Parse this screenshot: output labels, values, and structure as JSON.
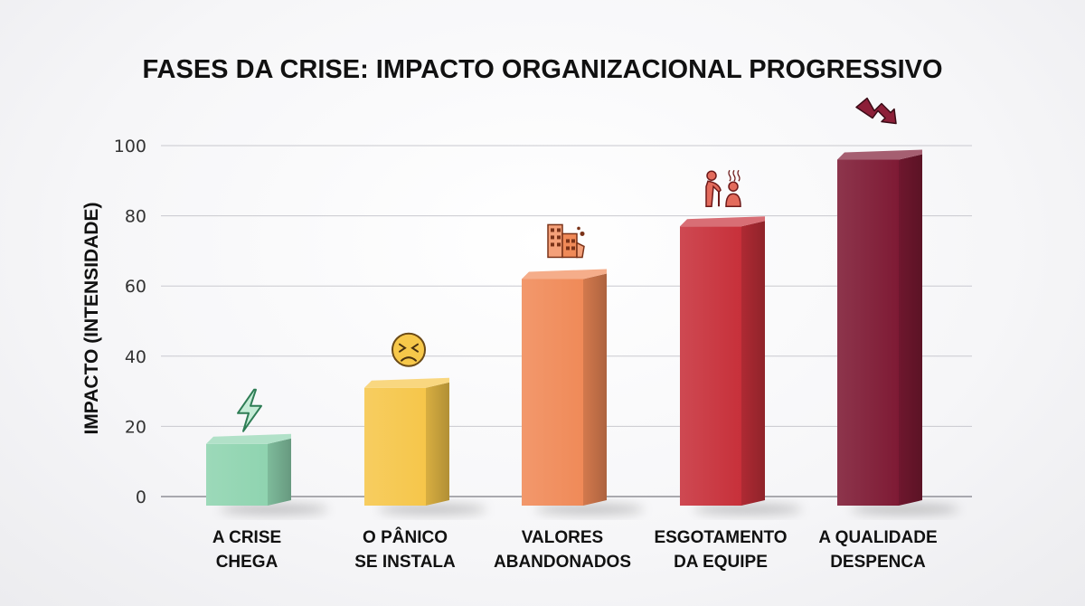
{
  "chart_data": {
    "type": "bar",
    "title": "FASES DA CRISE: IMPACTO ORGANIZACIONAL PROGRESSIVO",
    "xlabel": "",
    "ylabel": "IMPACTO (INTENSIDADE)",
    "ylim": [
      0,
      100
    ],
    "yticks": [
      0,
      20,
      40,
      60,
      80,
      100
    ],
    "grid": true,
    "categories": [
      [
        "A CRISE",
        "CHEGA"
      ],
      [
        "O PÂNICO",
        "SE INSTALA"
      ],
      [
        "VALORES",
        "ABANDONADOS"
      ],
      [
        "ESGOTAMENTO",
        "DA EQUIPE"
      ],
      [
        "A QUALIDADE",
        "DESPENCA"
      ]
    ],
    "values": [
      15,
      31,
      62,
      77,
      96
    ],
    "colors": [
      "#8fd4b0",
      "#f6c64a",
      "#f08a58",
      "#c7303a",
      "#7e1a34"
    ],
    "icons": [
      "lightning-icon",
      "worried-face-icon",
      "crumbling-building-icon",
      "exhausted-people-icon",
      "downtrend-arrow-icon"
    ]
  }
}
